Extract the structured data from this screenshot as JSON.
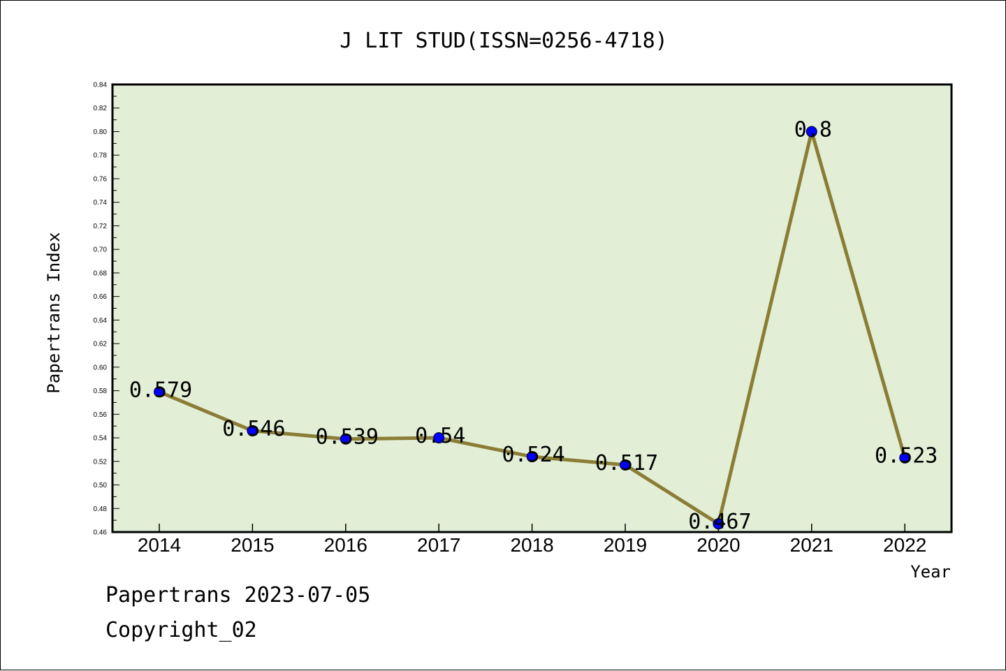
{
  "chart_data": {
    "type": "line",
    "title": "J LIT STUD(ISSN=0256-4718)",
    "xlabel": "Year",
    "ylabel": "Papertrans Index",
    "categories": [
      "2014",
      "2015",
      "2016",
      "2017",
      "2018",
      "2019",
      "2020",
      "2021",
      "2022"
    ],
    "values": [
      0.579,
      0.546,
      0.539,
      0.54,
      0.524,
      0.517,
      0.467,
      0.8,
      0.523
    ],
    "value_labels": [
      "0.579",
      "0.546",
      "0.539",
      "0.54",
      "0.524",
      "0.517",
      "0.467",
      "0.8",
      "0.523"
    ],
    "ylim": [
      0.46,
      0.84
    ],
    "yticks": [
      "0.46",
      "0.48",
      "0.50",
      "0.52",
      "0.54",
      "0.56",
      "0.58",
      "0.60",
      "0.62",
      "0.64",
      "0.66",
      "0.68",
      "0.70",
      "0.72",
      "0.74",
      "0.76",
      "0.78",
      "0.80",
      "0.82",
      "0.84"
    ],
    "grid": false,
    "colors": {
      "plot_background": "#e2efd6",
      "line": "#8b7d35",
      "marker": "#0000ff"
    }
  },
  "footer": {
    "line1": "Papertrans 2023-07-05",
    "line2": "Copyright_02"
  }
}
